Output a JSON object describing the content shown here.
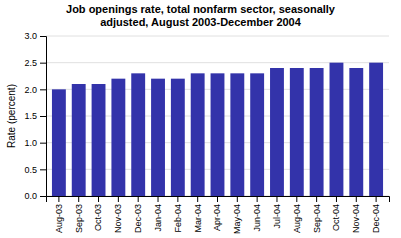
{
  "chart_data": {
    "type": "bar",
    "title": "Job openings rate, total nonfarm sector, seasonally\nadjusted, August 2003-December 2004",
    "ylabel": "Rate (percent)",
    "categories": [
      "Aug-03",
      "Sep-03",
      "Oct-03",
      "Nov-03",
      "Dec-03",
      "Jan-04",
      "Feb-04",
      "Mar-04",
      "Apr-04",
      "May-04",
      "Jun-04",
      "Jul-04",
      "Aug-04",
      "Sep-04",
      "Oct-04",
      "Nov-04",
      "Dec-04"
    ],
    "values": [
      2.0,
      2.1,
      2.1,
      2.2,
      2.3,
      2.2,
      2.2,
      2.3,
      2.3,
      2.3,
      2.3,
      2.4,
      2.4,
      2.4,
      2.5,
      2.4,
      2.5
    ],
    "color": "#3333aa",
    "ylim": [
      0.0,
      3.0
    ],
    "yticks": [
      {
        "value": 0.0,
        "label": "0.0"
      },
      0.5,
      {
        "value": 1.0,
        "label": "1.0"
      },
      1.5,
      {
        "value": 2.0,
        "label": "2.0"
      },
      2.5,
      {
        "value": 3.0,
        "label": "3.0"
      }
    ],
    "grid": true
  }
}
